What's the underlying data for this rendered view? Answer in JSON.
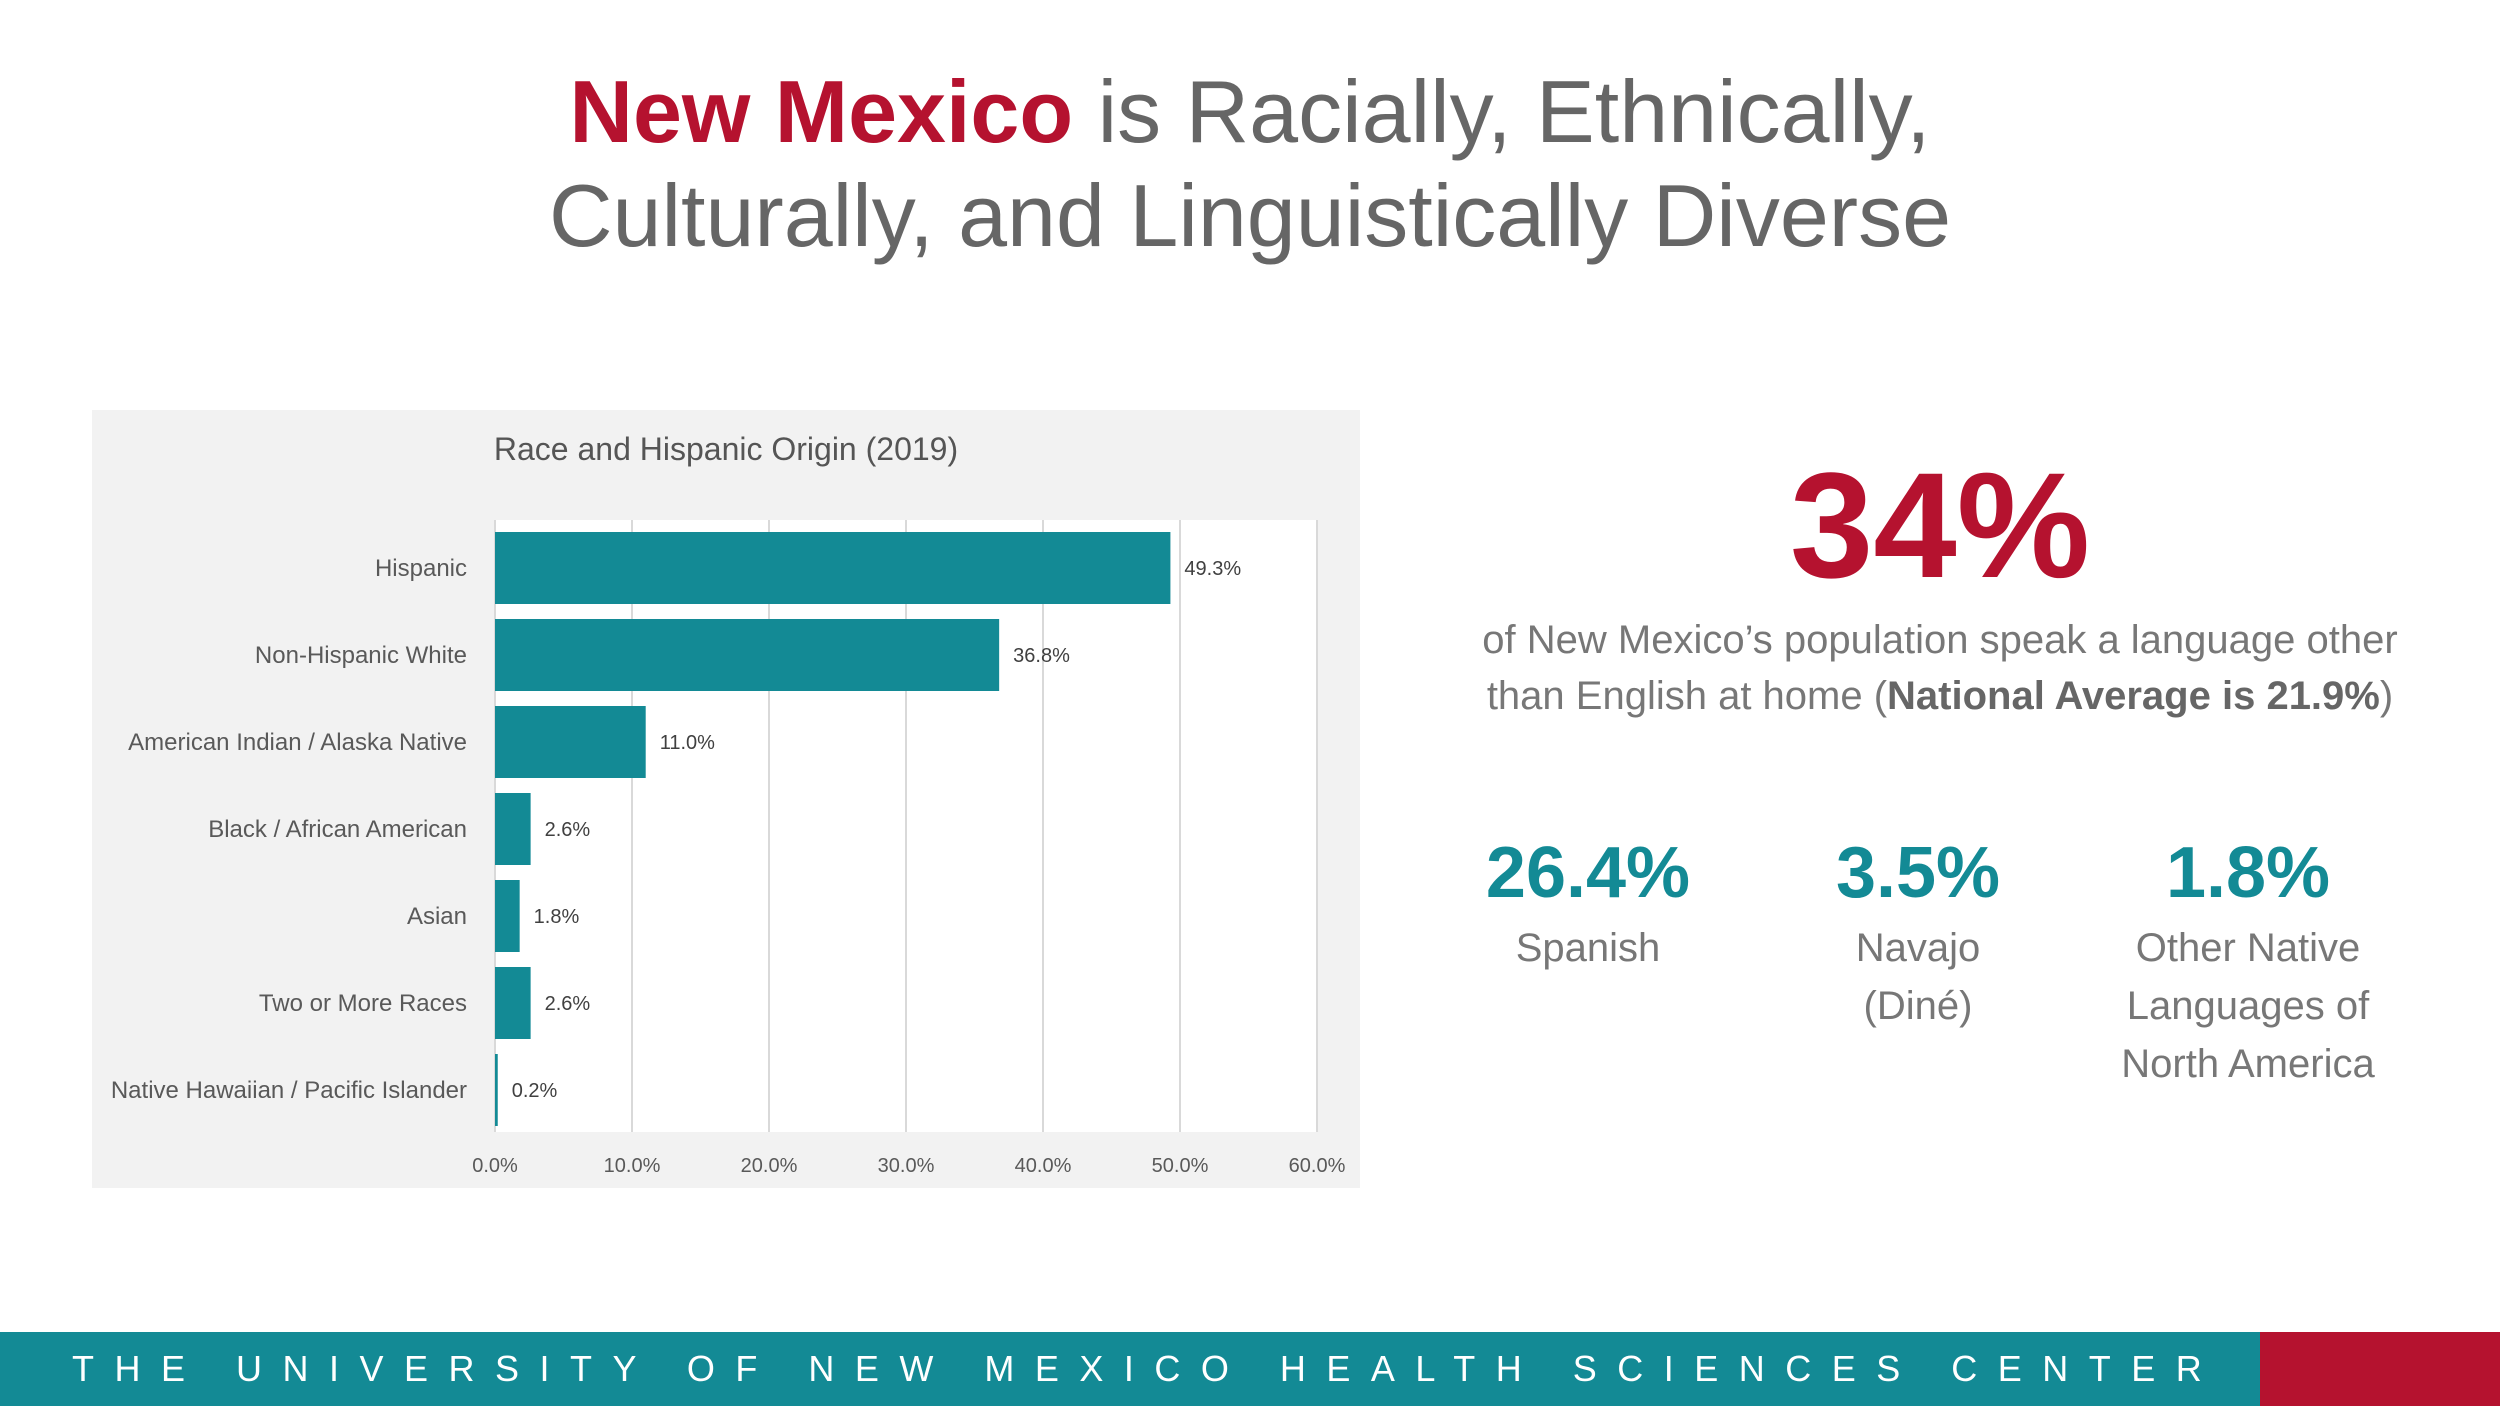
{
  "title": {
    "highlight": "New Mexico",
    "rest_line1": " is Racially, Ethnically,",
    "line2": "Culturally, and Linguistically Diverse"
  },
  "chart_data": {
    "type": "bar",
    "orientation": "horizontal",
    "title": "Race and Hispanic Origin (2019)",
    "categories": [
      "Hispanic",
      "Non-Hispanic White",
      "American Indian / Alaska Native",
      "Black / African American",
      "Asian",
      "Two or More Races",
      "Native Hawaiian / Pacific Islander"
    ],
    "values": [
      49.3,
      36.8,
      11.0,
      2.6,
      1.8,
      2.6,
      0.2
    ],
    "data_labels": [
      "49.3%",
      "36.8%",
      "11.0%",
      "2.6%",
      "1.8%",
      "2.6%",
      "0.2%"
    ],
    "xlim": [
      0,
      60
    ],
    "xticks": [
      "0.0%",
      "10.0%",
      "20.0%",
      "30.0%",
      "40.0%",
      "50.0%",
      "60.0%"
    ],
    "grid": true,
    "bar_color": "#138a95"
  },
  "stat": {
    "value": "34%",
    "line1": "of New Mexico’s population speak a language other",
    "line2_pre": "than English at home (",
    "line2_bold": "National Average is 21.9%",
    "line2_post": ")"
  },
  "languages": [
    {
      "pct": "26.4%",
      "lines": [
        "Spanish"
      ]
    },
    {
      "pct": "3.5%",
      "lines": [
        "Navajo",
        "(Diné)"
      ]
    },
    {
      "pct": "1.8%",
      "lines": [
        "Other Native",
        "Languages of",
        "North America"
      ]
    }
  ],
  "footer": {
    "text": "THE UNIVERSITY OF NEW MEXICO HEALTH SCIENCES CENTER"
  },
  "colors": {
    "accent_red": "#b5122f",
    "accent_teal": "#138a95",
    "text_gray": "#777777"
  }
}
